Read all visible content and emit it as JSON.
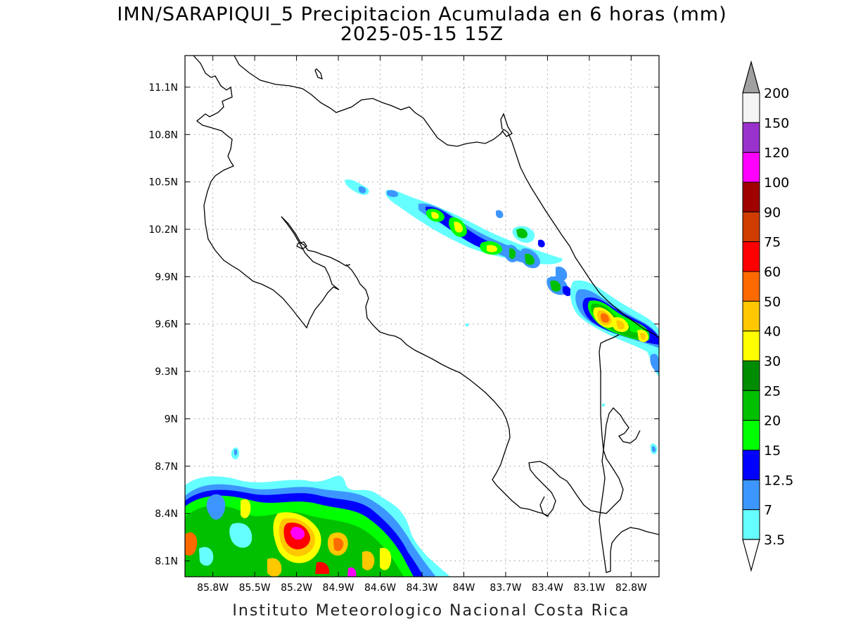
{
  "header": {
    "title": "IMN/SARAPIQUI_5 Precipitacion Acumulada en 6 horas (mm)",
    "subtitle": "2025-05-15 15Z"
  },
  "footer": {
    "credit": "Instituto Meteorologico Nacional Costa Rica"
  },
  "map": {
    "lon_range": [
      -86.0,
      -82.6
    ],
    "lat_range": [
      8.0,
      11.3
    ],
    "lon_ticks": [
      "85.8W",
      "85.5W",
      "85.2W",
      "84.9W",
      "84.6W",
      "84.3W",
      "84W",
      "83.7W",
      "83.4W",
      "83.1W",
      "82.8W"
    ],
    "lat_ticks": [
      "11.1N",
      "10.8N",
      "10.5N",
      "10.2N",
      "9.9N",
      "9.6N",
      "9.3N",
      "9N",
      "8.7N",
      "8.4N",
      "8.1N"
    ],
    "grid": true,
    "coastline_color": "#000000"
  },
  "colorbar": {
    "levels": [
      "200",
      "150",
      "120",
      "100",
      "90",
      "75",
      "60",
      "50",
      "40",
      "30",
      "25",
      "20",
      "15",
      "12.5",
      "7",
      "3.5"
    ],
    "colors": [
      "#f4f4f4",
      "#9932cc",
      "#ff00ff",
      "#a00000",
      "#d03c00",
      "#ff0000",
      "#ff6a00",
      "#ffc800",
      "#ffff00",
      "#008c00",
      "#00c000",
      "#00ff00",
      "#0000ff",
      "#3d96ff",
      "#66ffff"
    ],
    "overflow_color": "#a0a0a0",
    "units": "mm"
  }
}
